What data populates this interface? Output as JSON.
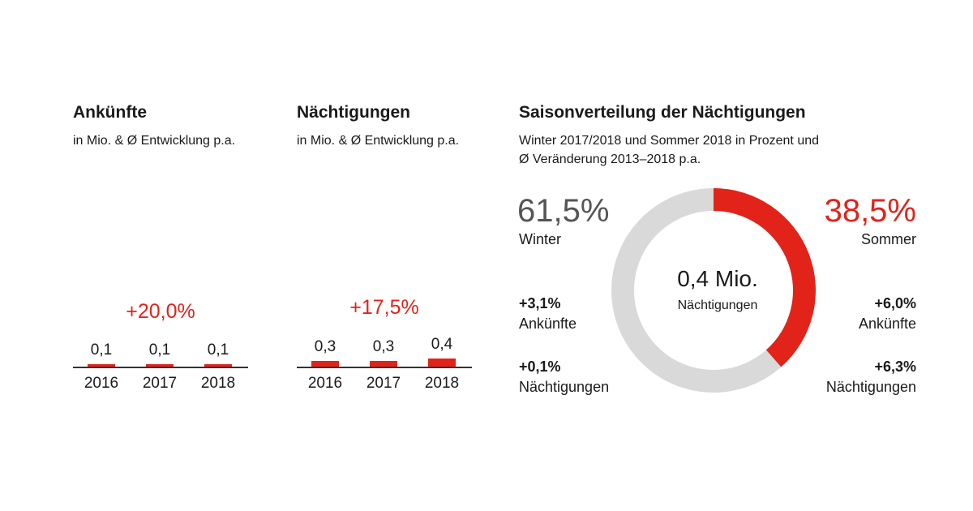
{
  "colors": {
    "accent": "#e2231a",
    "neutral": "#d9d9d9",
    "text": "#1a1a1a",
    "muted": "#555555"
  },
  "charts": {
    "arrivals": {
      "title": "Ankünfte",
      "subtitle": "in Mio. & Ø Entwicklung p.a.",
      "growth": "+20,0%"
    },
    "nights": {
      "title": "Nächtigungen",
      "subtitle": "in Mio. & Ø Entwicklung p.a.",
      "growth": "+17,5%"
    },
    "season": {
      "title": "Saisonverteilung der Nächtigungen",
      "subtitle_line1": "Winter 2017/2018 und Sommer 2018 in Prozent und",
      "subtitle_line2": "Ø Veränderung 2013–2018 p.a.",
      "center_value": "0,4 Mio.",
      "center_label": "Nächtigungen",
      "winter": {
        "pct": "61,5%",
        "label": "Winter",
        "arrivals_change": "+3,1%",
        "arrivals_label": "Ankünfte",
        "nights_change": "+0,1%",
        "nights_label": "Nächtigungen"
      },
      "summer": {
        "pct": "38,5%",
        "label": "Sommer",
        "arrivals_change": "+6,0%",
        "arrivals_label": "Ankünfte",
        "nights_change": "+6,3%",
        "nights_label": "Nächtigungen"
      }
    }
  },
  "chart_data": [
    {
      "type": "bar",
      "title": "Ankünfte",
      "subtitle": "in Mio. & Ø Entwicklung p.a.",
      "categories": [
        "2016",
        "2017",
        "2018"
      ],
      "values": [
        0.1,
        0.1,
        0.1
      ],
      "value_labels": [
        "0,1",
        "0,1",
        "0,1"
      ],
      "annotation": "+20,0%",
      "color": "#e2231a"
    },
    {
      "type": "bar",
      "title": "Nächtigungen",
      "subtitle": "in Mio. & Ø Entwicklung p.a.",
      "categories": [
        "2016",
        "2017",
        "2018"
      ],
      "values": [
        0.3,
        0.3,
        0.4
      ],
      "value_labels": [
        "0,3",
        "0,3",
        "0,4"
      ],
      "annotation": "+17,5%",
      "color": "#e2231a"
    },
    {
      "type": "pie",
      "title": "Saisonverteilung der Nächtigungen",
      "style": "donut",
      "slices": [
        {
          "name": "Winter",
          "value": 61.5,
          "color": "#d9d9d9"
        },
        {
          "name": "Sommer",
          "value": 38.5,
          "color": "#e2231a"
        }
      ],
      "center_text": [
        "0,4 Mio.",
        "Nächtigungen"
      ]
    }
  ]
}
